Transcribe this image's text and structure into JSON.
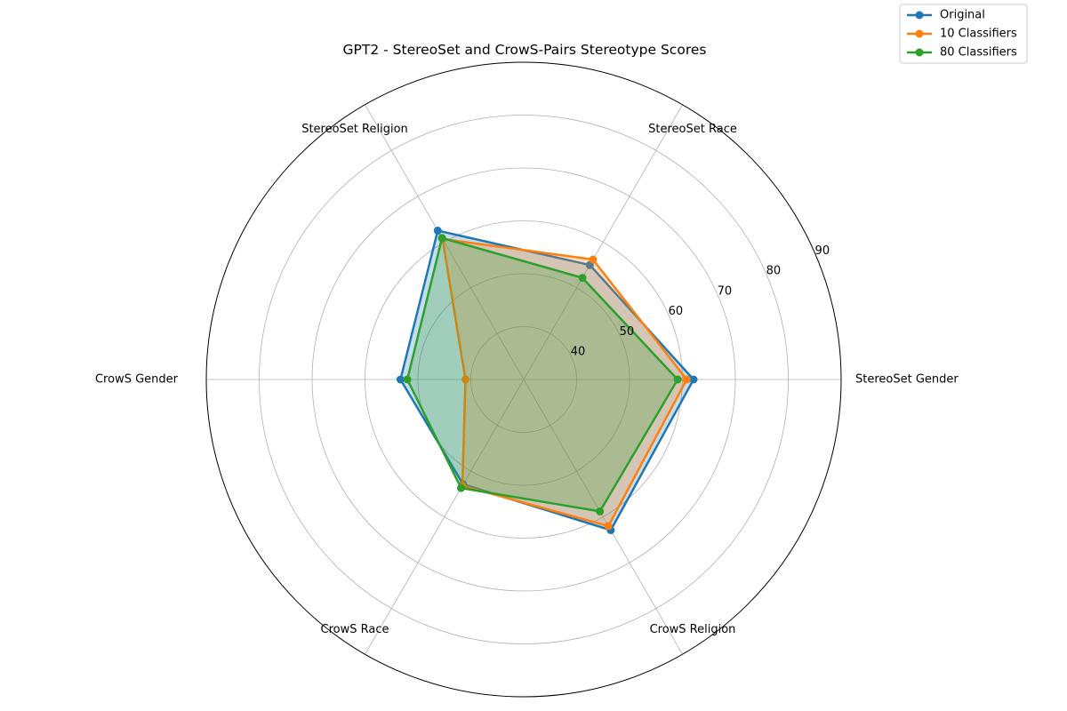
{
  "chart_data": {
    "type": "radar",
    "title": "GPT2 - StereoSet and CrowS-Pairs Stereotype Scores",
    "categories": [
      "StereoSet Gender",
      "StereoSet Race",
      "StereoSet Religion",
      "CrowS Gender",
      "CrowS Race",
      "CrowS Religion"
    ],
    "rlim": [
      30,
      90
    ],
    "rticks": [
      40,
      50,
      60,
      70,
      80,
      90
    ],
    "grid": true,
    "legend_position": "top-right",
    "series": [
      {
        "name": "Original",
        "color": "#1f77b4",
        "values": [
          62.1,
          55.0,
          62.5,
          53.3,
          52.9,
          62.9
        ]
      },
      {
        "name": "10 Classifiers",
        "color": "#ff7f0e",
        "values": [
          60.8,
          56.2,
          60.7,
          41.0,
          53.2,
          62.0
        ]
      },
      {
        "name": "80 Classifiers",
        "color": "#2ca02c",
        "values": [
          59.1,
          52.2,
          60.9,
          52.0,
          53.7,
          58.8
        ]
      }
    ]
  }
}
